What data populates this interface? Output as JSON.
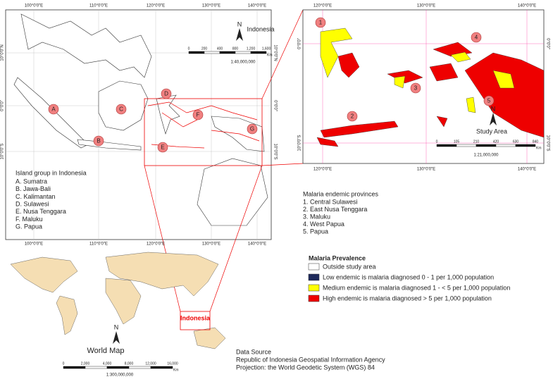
{
  "main_map": {
    "lon_labels": [
      "100°0'0\"E",
      "110°0'0\"E",
      "120°0'0\"E",
      "130°0'0\"E",
      "140°0'0\"E"
    ],
    "lat_labels": [
      "10°0'0\"N",
      "0°0'0\"",
      "10°0'0\"S"
    ],
    "markers": [
      "A",
      "B",
      "C",
      "D",
      "E",
      "F",
      "G"
    ],
    "north": "N",
    "country": "Indonesia",
    "scale_labels": [
      "0",
      "200",
      "400",
      "800",
      "1,200",
      "1,600"
    ],
    "scale_unit": "Km",
    "scale_ratio": "1:40,000,000",
    "legend_title": "Island group in Indonesia",
    "legend_items": [
      "A. Sumatra",
      "B. Jawa-Bali",
      "C. Kalimantan",
      "D. Sulawesi",
      "E. Nusa Tenggara",
      "F.  Maluku",
      "G. Papua"
    ]
  },
  "inset_map": {
    "lon_labels": [
      "120°0'0\"E",
      "130°0'0\"E",
      "140°0'0\"E"
    ],
    "lat_labels": [
      "0°0'0\"",
      "10°0'0\"S"
    ],
    "markers": [
      "1",
      "2",
      "3",
      "4",
      "5"
    ],
    "north": "N",
    "label": "Study Area",
    "scale_labels": [
      "0",
      "105",
      "210",
      "420",
      "630",
      "840"
    ],
    "scale_unit": "Km",
    "scale_ratio": "1:21,000,000"
  },
  "provinces": {
    "title": "Malaria endemic provinces",
    "items": [
      "1. Central Sulawesi",
      "2. East Nusa Tenggara",
      "3. Maluku",
      "4. West Papua",
      "5. Papua"
    ]
  },
  "prevalence": {
    "title": "Malaria Prevalence",
    "items": [
      "Outside study area",
      "Low endemic is malaria diagnosed 0 - 1  per 1,000 population",
      "Medium endemic is malaria diagnosed 1 - < 5  per 1,000 population",
      "High endemic is malaria diagnosed > 5  per 1,000 population"
    ]
  },
  "world_map": {
    "country": "Indonesia",
    "title": "World Map",
    "north": "N",
    "scale_labels": [
      "0",
      "2,000",
      "4,000",
      "8,000",
      "12,000",
      "16,000"
    ],
    "scale_unit": "Km",
    "scale_ratio": "1:300,000,000"
  },
  "data_source": [
    "Data Source",
    "Republic of Indonesia Geospatial Information Agency",
    "Projection: the World Geodetic System (WGS) 84"
  ]
}
